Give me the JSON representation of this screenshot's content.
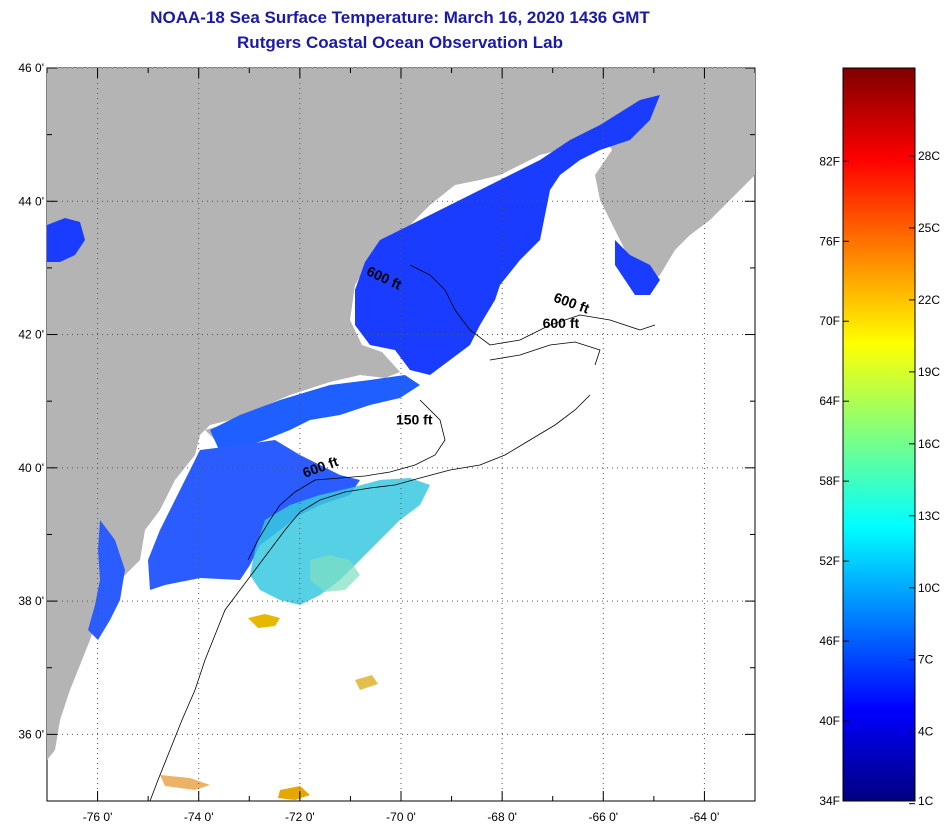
{
  "title": {
    "line1": "NOAA-18 Sea Surface Temperature:  March 16, 2020 1436 GMT",
    "line2": "Rutgers Coastal Ocean Observation Lab"
  },
  "map": {
    "lon_range": [
      -77,
      -63
    ],
    "lat_range": [
      35,
      46
    ],
    "lon_ticks": [
      {
        "value": -76,
        "label": "-76 0'"
      },
      {
        "value": -74,
        "label": "-74 0'"
      },
      {
        "value": -72,
        "label": "-72 0'"
      },
      {
        "value": -70,
        "label": "-70 0'"
      },
      {
        "value": -68,
        "label": "-68 0'"
      },
      {
        "value": -66,
        "label": "-66 0'"
      },
      {
        "value": -64,
        "label": "-64 0'"
      }
    ],
    "lat_ticks": [
      {
        "value": 46,
        "label": "46 0'"
      },
      {
        "value": 44,
        "label": "44 0'"
      },
      {
        "value": 42,
        "label": "42 0'"
      },
      {
        "value": 40,
        "label": "40 0'"
      },
      {
        "value": 38,
        "label": "38 0'"
      },
      {
        "value": 36,
        "label": "36 0'"
      }
    ],
    "contour_labels": [
      {
        "text": "600 ft",
        "lon": -70.7,
        "lat": 42.9,
        "rotate": 25
      },
      {
        "text": "600 ft",
        "lon": -67.0,
        "lat": 42.5,
        "rotate": 20
      },
      {
        "text": "600 ft",
        "lon": -67.2,
        "lat": 42.1,
        "rotate": 0
      },
      {
        "text": "150 ft",
        "lon": -70.1,
        "lat": 40.65,
        "rotate": 0
      },
      {
        "text": "600 ft",
        "lon": -71.9,
        "lat": 39.85,
        "rotate": -20
      }
    ],
    "colors": {
      "land": "#b4b4b4",
      "ocean_missing": "#ffffff",
      "cold_water": "#1a3cff",
      "cool_water": "#1f6fff"
    }
  },
  "colorbar": {
    "fahrenheit_labels": [
      "82F",
      "76F",
      "70F",
      "64F",
      "58F",
      "52F",
      "46F",
      "40F",
      "34F"
    ],
    "celsius_labels": [
      "28C",
      "25C",
      "22C",
      "19C",
      "16C",
      "13C",
      "10C",
      "7C",
      "4C",
      "1C"
    ],
    "range_f": [
      34,
      89
    ],
    "gradient_stops": [
      "#00007f",
      "#0000ff",
      "#007fff",
      "#00ffff",
      "#7fff7f",
      "#ffff00",
      "#ff7f00",
      "#ff0000",
      "#7f0000"
    ]
  }
}
